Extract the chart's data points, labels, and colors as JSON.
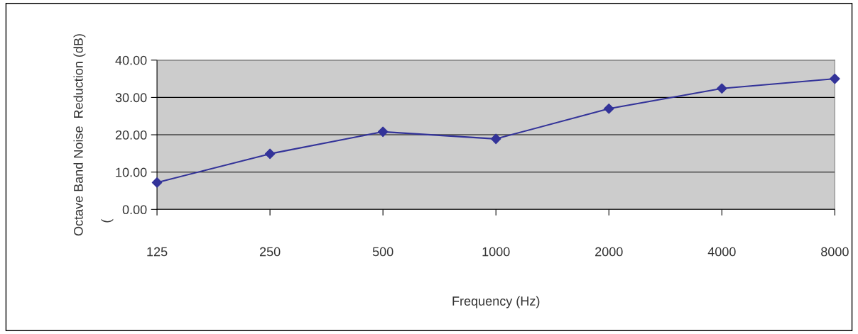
{
  "chart_data": {
    "type": "line",
    "xlabel": "Frequency (Hz)",
    "ylabel": "Octave Band Noise  Reduction (dB)",
    "categories": [
      "125",
      "250",
      "500",
      "1000",
      "2000",
      "4000",
      "8000"
    ],
    "series": [
      {
        "color": "#333399",
        "values": [
          7.2,
          14.9,
          20.8,
          18.9,
          27.0,
          32.4,
          35.0
        ]
      }
    ],
    "ylim": [
      0,
      40
    ],
    "yticks": [
      {
        "value": 0,
        "label": "0.00"
      },
      {
        "value": 10,
        "label": "10.00"
      },
      {
        "value": 20,
        "label": "20.00"
      },
      {
        "value": 30,
        "label": "30.00"
      },
      {
        "value": 40,
        "label": "40.00"
      }
    ],
    "grid": "y",
    "marker": "diamond",
    "line_style": "solid",
    "legend": false,
    "annotations": [
      "("
    ]
  }
}
